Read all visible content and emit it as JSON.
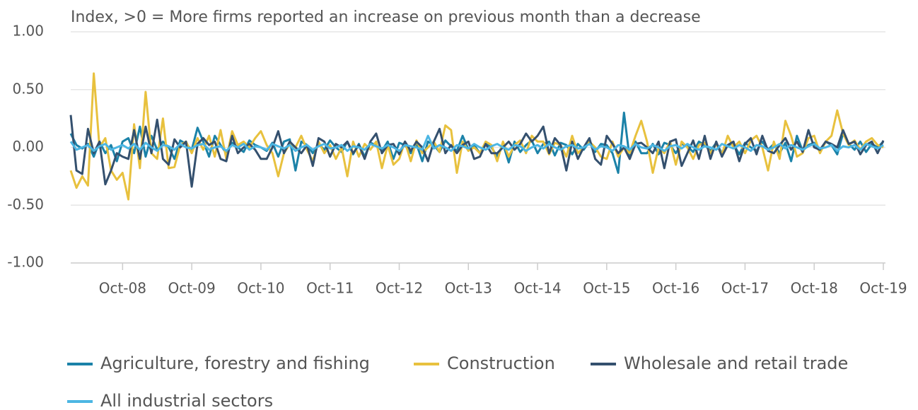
{
  "chart_data": {
    "type": "line",
    "title": "Index, >0 = More firms reported an increase on previous month than a decrease",
    "categories": [
      null,
      null,
      null,
      null,
      null,
      null,
      null,
      null,
      null,
      "Oct-08",
      null,
      null,
      null,
      null,
      null,
      null,
      null,
      null,
      null,
      null,
      null,
      "Oct-09",
      null,
      null,
      null,
      null,
      null,
      null,
      null,
      null,
      null,
      null,
      null,
      "Oct-10",
      null,
      null,
      null,
      null,
      null,
      null,
      null,
      null,
      null,
      null,
      null,
      "Oct-11",
      null,
      null,
      null,
      null,
      null,
      null,
      null,
      null,
      null,
      null,
      null,
      "Oct-12",
      null,
      null,
      null,
      null,
      null,
      null,
      null,
      null,
      null,
      null,
      null,
      "Oct-13",
      null,
      null,
      null,
      null,
      null,
      null,
      null,
      null,
      null,
      null,
      null,
      "Oct-14",
      null,
      null,
      null,
      null,
      null,
      null,
      null,
      null,
      null,
      null,
      null,
      "Oct-15",
      null,
      null,
      null,
      null,
      null,
      null,
      null,
      null,
      null,
      null,
      null,
      "Oct-16",
      null,
      null,
      null,
      null,
      null,
      null,
      null,
      null,
      null,
      null,
      null,
      "Oct-17",
      null,
      null,
      null,
      null,
      null,
      null,
      null,
      null,
      null,
      null,
      null,
      "Oct-18",
      null,
      null,
      null,
      null,
      null,
      null,
      null,
      null,
      null,
      null,
      null,
      "Oct-19"
    ],
    "series": [
      {
        "name": "Agriculture, forestry and fishing",
        "color": "#1b82a8",
        "values": [
          0.12,
          0.02,
          -0.01,
          0.03,
          -0.08,
          0.05,
          -0.05,
          0.02,
          -0.12,
          0.05,
          0.08,
          -0.05,
          0.18,
          -0.08,
          0.1,
          -0.02,
          0.05,
          0.0,
          -0.1,
          0.06,
          0.03,
          -0.02,
          0.17,
          0.05,
          -0.08,
          0.1,
          0.02,
          -0.05,
          0.04,
          0.0,
          -0.04,
          0.06,
          0.02,
          0.0,
          -0.03,
          0.04,
          -0.08,
          0.05,
          0.07,
          -0.2,
          0.05,
          0.02,
          -0.05,
          0.03,
          -0.02,
          0.06,
          0.0,
          -0.04,
          0.05,
          -0.06,
          0.03,
          -0.08,
          0.04,
          0.02,
          -0.03,
          0.05,
          -0.1,
          0.04,
          0.02,
          -0.05,
          0.03,
          -0.12,
          0.05,
          0.02,
          -0.04,
          0.06,
          0.01,
          -0.03,
          0.1,
          -0.02,
          0.02,
          -0.05,
          0.04,
          0.0,
          -0.08,
          0.03,
          -0.13,
          0.05,
          -0.04,
          0.02,
          0.06,
          -0.05,
          0.03,
          0.05,
          -0.07,
          0.04,
          0.02,
          -0.06,
          0.03,
          -0.02,
          0.05,
          -0.04,
          0.03,
          0.02,
          -0.05,
          -0.22,
          0.3,
          -0.1,
          0.05,
          -0.05,
          -0.05,
          0.03,
          -0.06,
          0.04,
          0.02,
          -0.05,
          0.03,
          0.01,
          -0.04,
          0.05,
          0.02,
          -0.03,
          0.04,
          -0.05,
          0.02,
          0.03,
          -0.06,
          0.04,
          0.0,
          -0.03,
          0.05,
          -0.02,
          0.03,
          -0.05,
          0.04,
          -0.12,
          0.1,
          -0.03,
          0.02,
          0.04,
          -0.04,
          0.05,
          0.02,
          -0.06,
          0.12,
          0.03,
          -0.02,
          0.05,
          -0.04,
          0.03,
          0.0,
          0.05
        ]
      },
      {
        "name": "Construction",
        "color": "#e8c13e",
        "values": [
          -0.2,
          -0.35,
          -0.25,
          -0.33,
          0.64,
          0.0,
          0.08,
          -0.2,
          -0.28,
          -0.22,
          -0.45,
          0.2,
          -0.18,
          0.48,
          -0.05,
          -0.1,
          0.25,
          -0.18,
          -0.17,
          0.02,
          0.05,
          -0.05,
          0.08,
          -0.02,
          0.1,
          -0.08,
          0.15,
          -0.1,
          0.14,
          0.02,
          0.05,
          0.0,
          0.08,
          0.14,
          0.02,
          -0.05,
          -0.25,
          -0.05,
          0.03,
          0.0,
          0.1,
          -0.02,
          -0.12,
          0.05,
          -0.05,
          0.02,
          -0.1,
          0.0,
          -0.25,
          0.05,
          -0.08,
          0.03,
          -0.02,
          0.05,
          -0.18,
          0.02,
          -0.15,
          -0.1,
          0.05,
          -0.12,
          0.06,
          -0.05,
          0.0,
          0.05,
          -0.04,
          0.19,
          0.15,
          -0.22,
          0.05,
          -0.03,
          0.0,
          -0.05,
          0.05,
          0.02,
          -0.12,
          0.05,
          -0.08,
          0.02,
          0.06,
          -0.05,
          0.1,
          0.05,
          0.05,
          -0.06,
          0.04,
          0.02,
          -0.08,
          0.1,
          -0.05,
          0.0,
          0.05,
          0.0,
          -0.08,
          -0.1,
          0.05,
          -0.08,
          0.0,
          -0.05,
          0.1,
          0.23,
          0.05,
          -0.22,
          0.0,
          -0.05,
          0.05,
          -0.15,
          0.05,
          0.0,
          -0.1,
          0.02,
          0.04,
          -0.05,
          0.03,
          -0.06,
          0.1,
          0.0,
          0.05,
          -0.05,
          0.06,
          0.1,
          0.0,
          -0.2,
          0.05,
          -0.1,
          0.23,
          0.1,
          -0.08,
          -0.05,
          0.08,
          0.1,
          -0.05,
          0.05,
          0.1,
          0.32,
          0.12,
          0.02,
          0.06,
          -0.02,
          0.05,
          0.08,
          0.02,
          0.0
        ]
      },
      {
        "name": "Wholesale and retail trade",
        "color": "#34506e",
        "values": [
          0.28,
          -0.2,
          -0.23,
          0.16,
          -0.05,
          0.05,
          -0.32,
          -0.2,
          -0.05,
          -0.08,
          -0.1,
          0.15,
          -0.1,
          0.18,
          -0.05,
          0.24,
          -0.1,
          -0.15,
          0.07,
          0.0,
          0.05,
          -0.34,
          0.03,
          0.08,
          0.02,
          0.05,
          -0.1,
          -0.12,
          0.1,
          -0.05,
          0.0,
          0.03,
          -0.02,
          -0.1,
          -0.1,
          0.0,
          0.14,
          -0.05,
          0.05,
          0.0,
          -0.05,
          0.02,
          -0.16,
          0.08,
          0.05,
          -0.08,
          0.03,
          0.0,
          0.05,
          -0.05,
          0.02,
          -0.1,
          0.05,
          0.12,
          -0.05,
          0.02,
          0.03,
          -0.06,
          0.05,
          -0.03,
          0.05,
          0.0,
          -0.12,
          0.05,
          0.16,
          -0.05,
          0.02,
          -0.05,
          0.02,
          0.05,
          -0.1,
          -0.08,
          0.03,
          -0.05,
          -0.05,
          0.0,
          0.05,
          -0.02,
          0.03,
          0.12,
          0.05,
          0.1,
          0.18,
          -0.05,
          0.08,
          0.02,
          -0.2,
          0.05,
          -0.1,
          0.0,
          0.08,
          -0.1,
          -0.15,
          0.1,
          0.03,
          -0.05,
          0.0,
          -0.1,
          0.03,
          0.04,
          0.0,
          -0.05,
          0.05,
          -0.18,
          0.05,
          0.07,
          -0.16,
          -0.05,
          0.06,
          -0.1,
          0.1,
          -0.1,
          0.05,
          -0.08,
          0.02,
          0.05,
          -0.12,
          0.03,
          0.08,
          -0.06,
          0.1,
          -0.03,
          -0.05,
          0.02,
          0.08,
          -0.02,
          0.05,
          -0.04,
          0.15,
          0.0,
          -0.02,
          0.05,
          0.03,
          0.0,
          0.15,
          0.03,
          0.05,
          -0.06,
          0.02,
          0.05,
          -0.05,
          0.06
        ]
      },
      {
        "name": "All industrial sectors",
        "color": "#4cb6e3",
        "values": [
          0.05,
          -0.02,
          0.0,
          0.02,
          -0.03,
          0.01,
          0.03,
          -0.02,
          0.0,
          0.02,
          -0.01,
          0.03,
          -0.02,
          0.04,
          0.0,
          -0.03,
          0.02,
          0.01,
          -0.02,
          0.03,
          0.0,
          -0.01,
          0.02,
          0.03,
          -0.02,
          0.0,
          0.01,
          -0.03,
          0.02,
          0.0,
          0.03,
          -0.02,
          0.01,
          0.0,
          -0.02,
          0.03,
          0.01,
          -0.01,
          0.02,
          -0.03,
          0.0,
          0.02,
          -0.02,
          0.01,
          0.03,
          -0.01,
          0.0,
          0.02,
          -0.03,
          0.01,
          0.0,
          -0.02,
          0.03,
          0.01,
          -0.01,
          0.02,
          0.0,
          -0.03,
          0.02,
          0.01,
          0.0,
          -0.02,
          0.1,
          -0.01,
          0.02,
          0.0,
          -0.03,
          0.02,
          0.01,
          -0.01,
          0.03,
          0.0,
          -0.02,
          0.01,
          0.03,
          0.0,
          -0.02,
          0.02,
          0.01,
          -0.03,
          0.0,
          0.02,
          -0.01,
          0.03,
          0.0,
          -0.02,
          0.01,
          0.02,
          -0.01,
          0.0,
          0.03,
          -0.02,
          0.01,
          0.0,
          -0.03,
          0.02,
          0.01,
          -0.02,
          0.03,
          0.0,
          -0.01,
          0.02,
          0.0,
          -0.03,
          0.01,
          0.02,
          -0.01,
          0.03,
          0.0,
          -0.02,
          0.01,
          0.0,
          -0.02,
          0.03,
          0.01,
          -0.01,
          0.02,
          0.0,
          -0.03,
          0.02,
          0.01,
          -0.02,
          0.0,
          0.03,
          -0.01,
          0.02,
          0.0,
          -0.02,
          0.01,
          0.03,
          -0.01,
          0.0,
          0.02,
          -0.03,
          0.01,
          0.0,
          0.02,
          -0.02,
          0.03,
          0.01,
          -0.01,
          0.02
        ]
      }
    ],
    "ylim": [
      -1,
      1
    ],
    "yticks": [
      {
        "value": -1,
        "label": "-1.00"
      },
      {
        "value": -0.5,
        "label": "-0.50"
      },
      {
        "value": 0,
        "label": "0.00"
      },
      {
        "value": 0.5,
        "label": "0.50"
      },
      {
        "value": 1,
        "label": "1.00"
      }
    ],
    "grid": true
  }
}
